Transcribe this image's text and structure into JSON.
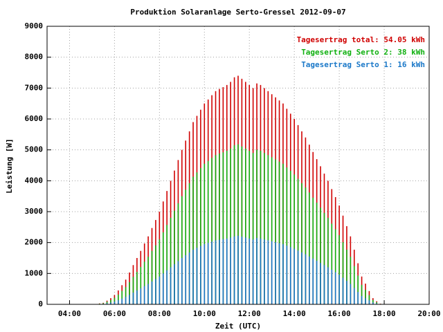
{
  "chart_data": {
    "type": "impulse",
    "title": "Produktion Solaranlage Serto-Gressel 2012-09-07",
    "xlabel": "Zeit (UTC)",
    "ylabel": "Leistung [W]",
    "xlim": [
      "03:00",
      "20:00"
    ],
    "xticks": [
      "04:00",
      "06:00",
      "08:00",
      "10:00",
      "12:00",
      "14:00",
      "16:00",
      "18:00",
      "20:00"
    ],
    "ylim": [
      0,
      9000
    ],
    "yticks": [
      0,
      1000,
      2000,
      3000,
      4000,
      5000,
      6000,
      7000,
      8000,
      9000
    ],
    "grid": true,
    "legend": "top-right",
    "x": [
      "05:10",
      "05:20",
      "05:30",
      "05:40",
      "05:50",
      "06:00",
      "06:10",
      "06:20",
      "06:30",
      "06:40",
      "06:50",
      "07:00",
      "07:10",
      "07:20",
      "07:30",
      "07:40",
      "07:50",
      "08:00",
      "08:10",
      "08:20",
      "08:30",
      "08:40",
      "08:50",
      "09:00",
      "09:10",
      "09:20",
      "09:30",
      "09:40",
      "09:50",
      "10:00",
      "10:10",
      "10:20",
      "10:30",
      "10:40",
      "10:50",
      "11:00",
      "11:10",
      "11:20",
      "11:30",
      "11:40",
      "11:50",
      "12:00",
      "12:10",
      "12:20",
      "12:30",
      "12:40",
      "12:50",
      "13:00",
      "13:10",
      "13:20",
      "13:30",
      "13:40",
      "13:50",
      "14:00",
      "14:10",
      "14:20",
      "14:30",
      "14:40",
      "14:50",
      "15:00",
      "15:10",
      "15:20",
      "15:30",
      "15:40",
      "15:50",
      "16:00",
      "16:10",
      "16:20",
      "16:30",
      "16:40",
      "16:50",
      "17:00",
      "17:10",
      "17:20",
      "17:30",
      "17:40",
      "17:50"
    ],
    "series": [
      {
        "name": "Tagesertrag total: 54.05 kWh",
        "color": "#d00000",
        "values": [
          10,
          30,
          50,
          120,
          200,
          300,
          450,
          620,
          800,
          1030,
          1270,
          1500,
          1730,
          1970,
          2200,
          2470,
          2730,
          3000,
          3330,
          3670,
          4000,
          4330,
          4670,
          5000,
          5300,
          5600,
          5900,
          6100,
          6300,
          6500,
          6630,
          6770,
          6900,
          6970,
          7030,
          7100,
          7200,
          7350,
          7400,
          7300,
          7200,
          7100,
          7000,
          7150,
          7100,
          7000,
          6900,
          6800,
          6700,
          6600,
          6500,
          6330,
          6170,
          6000,
          5800,
          5600,
          5400,
          5170,
          4930,
          4700,
          4470,
          4230,
          4000,
          3730,
          3470,
          3200,
          2870,
          2530,
          2200,
          1770,
          1330,
          900,
          670,
          430,
          200,
          100,
          20
        ]
      },
      {
        "name": "Tagesertrag Serto 2: 38 kWh",
        "color": "#10b010",
        "values": [
          7,
          20,
          35,
          85,
          140,
          210,
          315,
          435,
          560,
          720,
          890,
          1050,
          1210,
          1380,
          1540,
          1730,
          1910,
          2100,
          2330,
          2570,
          2800,
          3030,
          3270,
          3500,
          3710,
          3920,
          4130,
          4270,
          4410,
          4550,
          4640,
          4740,
          4830,
          4880,
          4920,
          4970,
          5040,
          5150,
          5180,
          5110,
          5040,
          4970,
          4900,
          5000,
          4970,
          4900,
          4830,
          4760,
          4690,
          4620,
          4550,
          4430,
          4320,
          4200,
          4060,
          3920,
          3780,
          3620,
          3450,
          3290,
          3130,
          2960,
          2800,
          2610,
          2430,
          2240,
          2010,
          1770,
          1540,
          1240,
          930,
          630,
          470,
          300,
          140,
          70,
          14
        ]
      },
      {
        "name": "Tagesertrag Serto 1: 16 kWh",
        "color": "#1a78c8",
        "values": [
          3,
          10,
          15,
          35,
          60,
          90,
          135,
          185,
          240,
          310,
          380,
          450,
          520,
          590,
          660,
          740,
          820,
          900,
          1000,
          1100,
          1200,
          1300,
          1400,
          1500,
          1590,
          1680,
          1770,
          1830,
          1890,
          1950,
          1990,
          2030,
          2070,
          2090,
          2110,
          2130,
          2160,
          2200,
          2220,
          2190,
          2160,
          2130,
          2100,
          2150,
          2130,
          2100,
          2070,
          2040,
          2010,
          1980,
          1950,
          1900,
          1850,
          1800,
          1740,
          1680,
          1620,
          1550,
          1480,
          1410,
          1340,
          1270,
          1200,
          1120,
          1040,
          960,
          860,
          760,
          660,
          530,
          400,
          270,
          200,
          130,
          60,
          30,
          6
        ]
      }
    ]
  }
}
